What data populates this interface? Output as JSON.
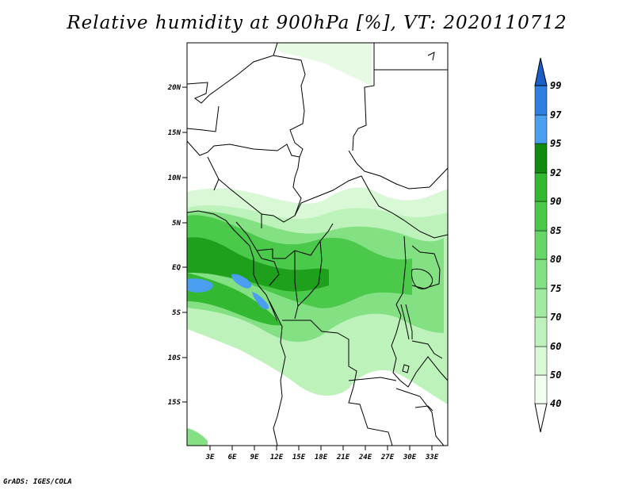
{
  "title": "Relative humidity at 900hPa [%], VT: 2020110712",
  "credit": "GrADS: IGES/COLA",
  "lat_ticks": [
    "20N",
    "15N",
    "10N",
    "5N",
    "EQ",
    "5S",
    "10S",
    "15S"
  ],
  "lon_ticks": [
    "3E",
    "6E",
    "9E",
    "12E",
    "15E",
    "18E",
    "21E",
    "24E",
    "27E",
    "30E",
    "33E"
  ],
  "colorbar": {
    "levels": [
      "40",
      "50",
      "60",
      "70",
      "75",
      "80",
      "85",
      "90",
      "92",
      "95",
      "97",
      "99"
    ],
    "colors": [
      "#f0fff0",
      "#d9f8d6",
      "#bef2bb",
      "#a1eba0",
      "#84e183",
      "#68d666",
      "#4bc94a",
      "#33b832",
      "#1ea01d",
      "#118a11",
      "#4a9ff0",
      "#2f7fe0",
      "#1a5fc8"
    ]
  }
}
